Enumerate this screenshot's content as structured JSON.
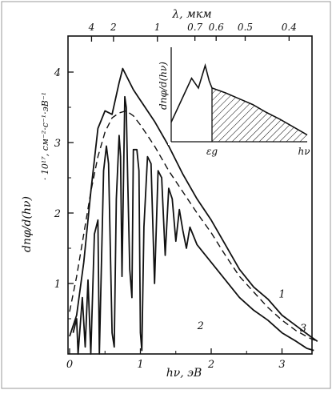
{
  "chart_data": [
    {
      "type": "line",
      "xlabel": "hν, эВ",
      "ylabel_main": "dnφ/d(hν)",
      "ylabel_units": "· 10¹⁷, см⁻²·с⁻¹·эВ⁻¹",
      "top_axis_label": "λ, мкм",
      "xlim": [
        0,
        3.5
      ],
      "ylim": [
        0,
        4.4
      ],
      "x_ticks": [
        "0",
        "1",
        "2",
        "3"
      ],
      "y_ticks": [
        "1",
        "2",
        "3",
        "4"
      ],
      "top_ticks": [
        {
          "label": "4",
          "ev": 0.31
        },
        {
          "label": "2",
          "ev": 0.62
        },
        {
          "label": "1",
          "ev": 1.24
        },
        {
          "label": "0.7",
          "ev": 1.77
        },
        {
          "label": "0.6",
          "ev": 2.07
        },
        {
          "label": "0.5",
          "ev": 2.48
        },
        {
          "label": "0.4",
          "ev": 3.1
        }
      ],
      "series": [
        {
          "name": "1",
          "style": "solid",
          "points": [
            [
              0.0,
              0.25
            ],
            [
              0.1,
              0.55
            ],
            [
              0.2,
              1.3
            ],
            [
              0.3,
              2.3
            ],
            [
              0.4,
              3.2
            ],
            [
              0.5,
              3.45
            ],
            [
              0.6,
              3.4
            ],
            [
              0.7,
              3.85
            ],
            [
              0.75,
              4.05
            ],
            [
              0.8,
              3.95
            ],
            [
              0.9,
              3.75
            ],
            [
              1.0,
              3.6
            ],
            [
              1.2,
              3.3
            ],
            [
              1.4,
              2.95
            ],
            [
              1.6,
              2.55
            ],
            [
              1.8,
              2.2
            ],
            [
              2.0,
              1.9
            ],
            [
              2.2,
              1.55
            ],
            [
              2.4,
              1.2
            ],
            [
              2.6,
              0.95
            ],
            [
              2.8,
              0.78
            ],
            [
              3.0,
              0.55
            ],
            [
              3.2,
              0.4
            ],
            [
              3.4,
              0.25
            ],
            [
              3.5,
              0.18
            ]
          ]
        },
        {
          "name": "2",
          "style": "solid",
          "points": [
            [
              0.05,
              0.3
            ],
            [
              0.1,
              0.5
            ],
            [
              0.12,
              0.0
            ],
            [
              0.18,
              0.8
            ],
            [
              0.22,
              0.1
            ],
            [
              0.26,
              1.05
            ],
            [
              0.3,
              0.0
            ],
            [
              0.35,
              1.7
            ],
            [
              0.4,
              1.9
            ],
            [
              0.42,
              0.0
            ],
            [
              0.48,
              2.6
            ],
            [
              0.52,
              2.95
            ],
            [
              0.55,
              2.7
            ],
            [
              0.6,
              0.3
            ],
            [
              0.63,
              0.1
            ],
            [
              0.66,
              2.2
            ],
            [
              0.7,
              3.1
            ],
            [
              0.72,
              2.8
            ],
            [
              0.74,
              1.1
            ],
            [
              0.78,
              3.65
            ],
            [
              0.8,
              3.5
            ],
            [
              0.82,
              2.5
            ],
            [
              0.85,
              1.2
            ],
            [
              0.88,
              0.8
            ],
            [
              0.9,
              2.9
            ],
            [
              0.95,
              2.9
            ],
            [
              0.98,
              2.6
            ],
            [
              1.0,
              0.3
            ],
            [
              1.02,
              0.05
            ],
            [
              1.05,
              1.8
            ],
            [
              1.1,
              2.8
            ],
            [
              1.15,
              2.7
            ],
            [
              1.2,
              1.0
            ],
            [
              1.25,
              2.6
            ],
            [
              1.3,
              2.5
            ],
            [
              1.35,
              1.4
            ],
            [
              1.4,
              2.35
            ],
            [
              1.45,
              2.2
            ],
            [
              1.5,
              1.6
            ],
            [
              1.55,
              2.05
            ],
            [
              1.6,
              1.75
            ],
            [
              1.65,
              1.5
            ],
            [
              1.7,
              1.8
            ],
            [
              1.8,
              1.55
            ],
            [
              2.0,
              1.3
            ],
            [
              2.2,
              1.05
            ],
            [
              2.4,
              0.8
            ],
            [
              2.6,
              0.62
            ],
            [
              2.8,
              0.48
            ],
            [
              3.0,
              0.3
            ],
            [
              3.2,
              0.18
            ],
            [
              3.35,
              0.08
            ],
            [
              3.45,
              0.05
            ]
          ]
        },
        {
          "name": "3",
          "style": "dashed",
          "points": [
            [
              0.0,
              0.6
            ],
            [
              0.1,
              1.1
            ],
            [
              0.2,
              1.7
            ],
            [
              0.3,
              2.3
            ],
            [
              0.4,
              2.8
            ],
            [
              0.5,
              3.15
            ],
            [
              0.6,
              3.35
            ],
            [
              0.7,
              3.42
            ],
            [
              0.8,
              3.45
            ],
            [
              0.9,
              3.38
            ],
            [
              1.0,
              3.25
            ],
            [
              1.2,
              2.95
            ],
            [
              1.4,
              2.6
            ],
            [
              1.6,
              2.3
            ],
            [
              1.8,
              2.0
            ],
            [
              2.0,
              1.72
            ],
            [
              2.2,
              1.4
            ],
            [
              2.4,
              1.1
            ],
            [
              2.6,
              0.88
            ],
            [
              2.8,
              0.66
            ],
            [
              3.0,
              0.48
            ],
            [
              3.2,
              0.33
            ],
            [
              3.4,
              0.22
            ],
            [
              3.5,
              0.18
            ]
          ]
        }
      ],
      "inset": {
        "type": "area",
        "ylabel": "dnφ/d(hν)",
        "xlabel": "hν",
        "marker_label": "εg",
        "marker_x": 0.3,
        "points": [
          [
            0.0,
            0.2
          ],
          [
            0.1,
            0.5
          ],
          [
            0.15,
            0.65
          ],
          [
            0.2,
            0.55
          ],
          [
            0.25,
            0.78
          ],
          [
            0.28,
            0.62
          ],
          [
            0.3,
            0.55
          ],
          [
            0.4,
            0.5
          ],
          [
            0.5,
            0.44
          ],
          [
            0.6,
            0.38
          ],
          [
            0.7,
            0.3
          ],
          [
            0.8,
            0.23
          ],
          [
            0.9,
            0.15
          ],
          [
            0.95,
            0.11
          ],
          [
            1.0,
            0.07
          ]
        ],
        "fill": "hatched"
      }
    }
  ]
}
